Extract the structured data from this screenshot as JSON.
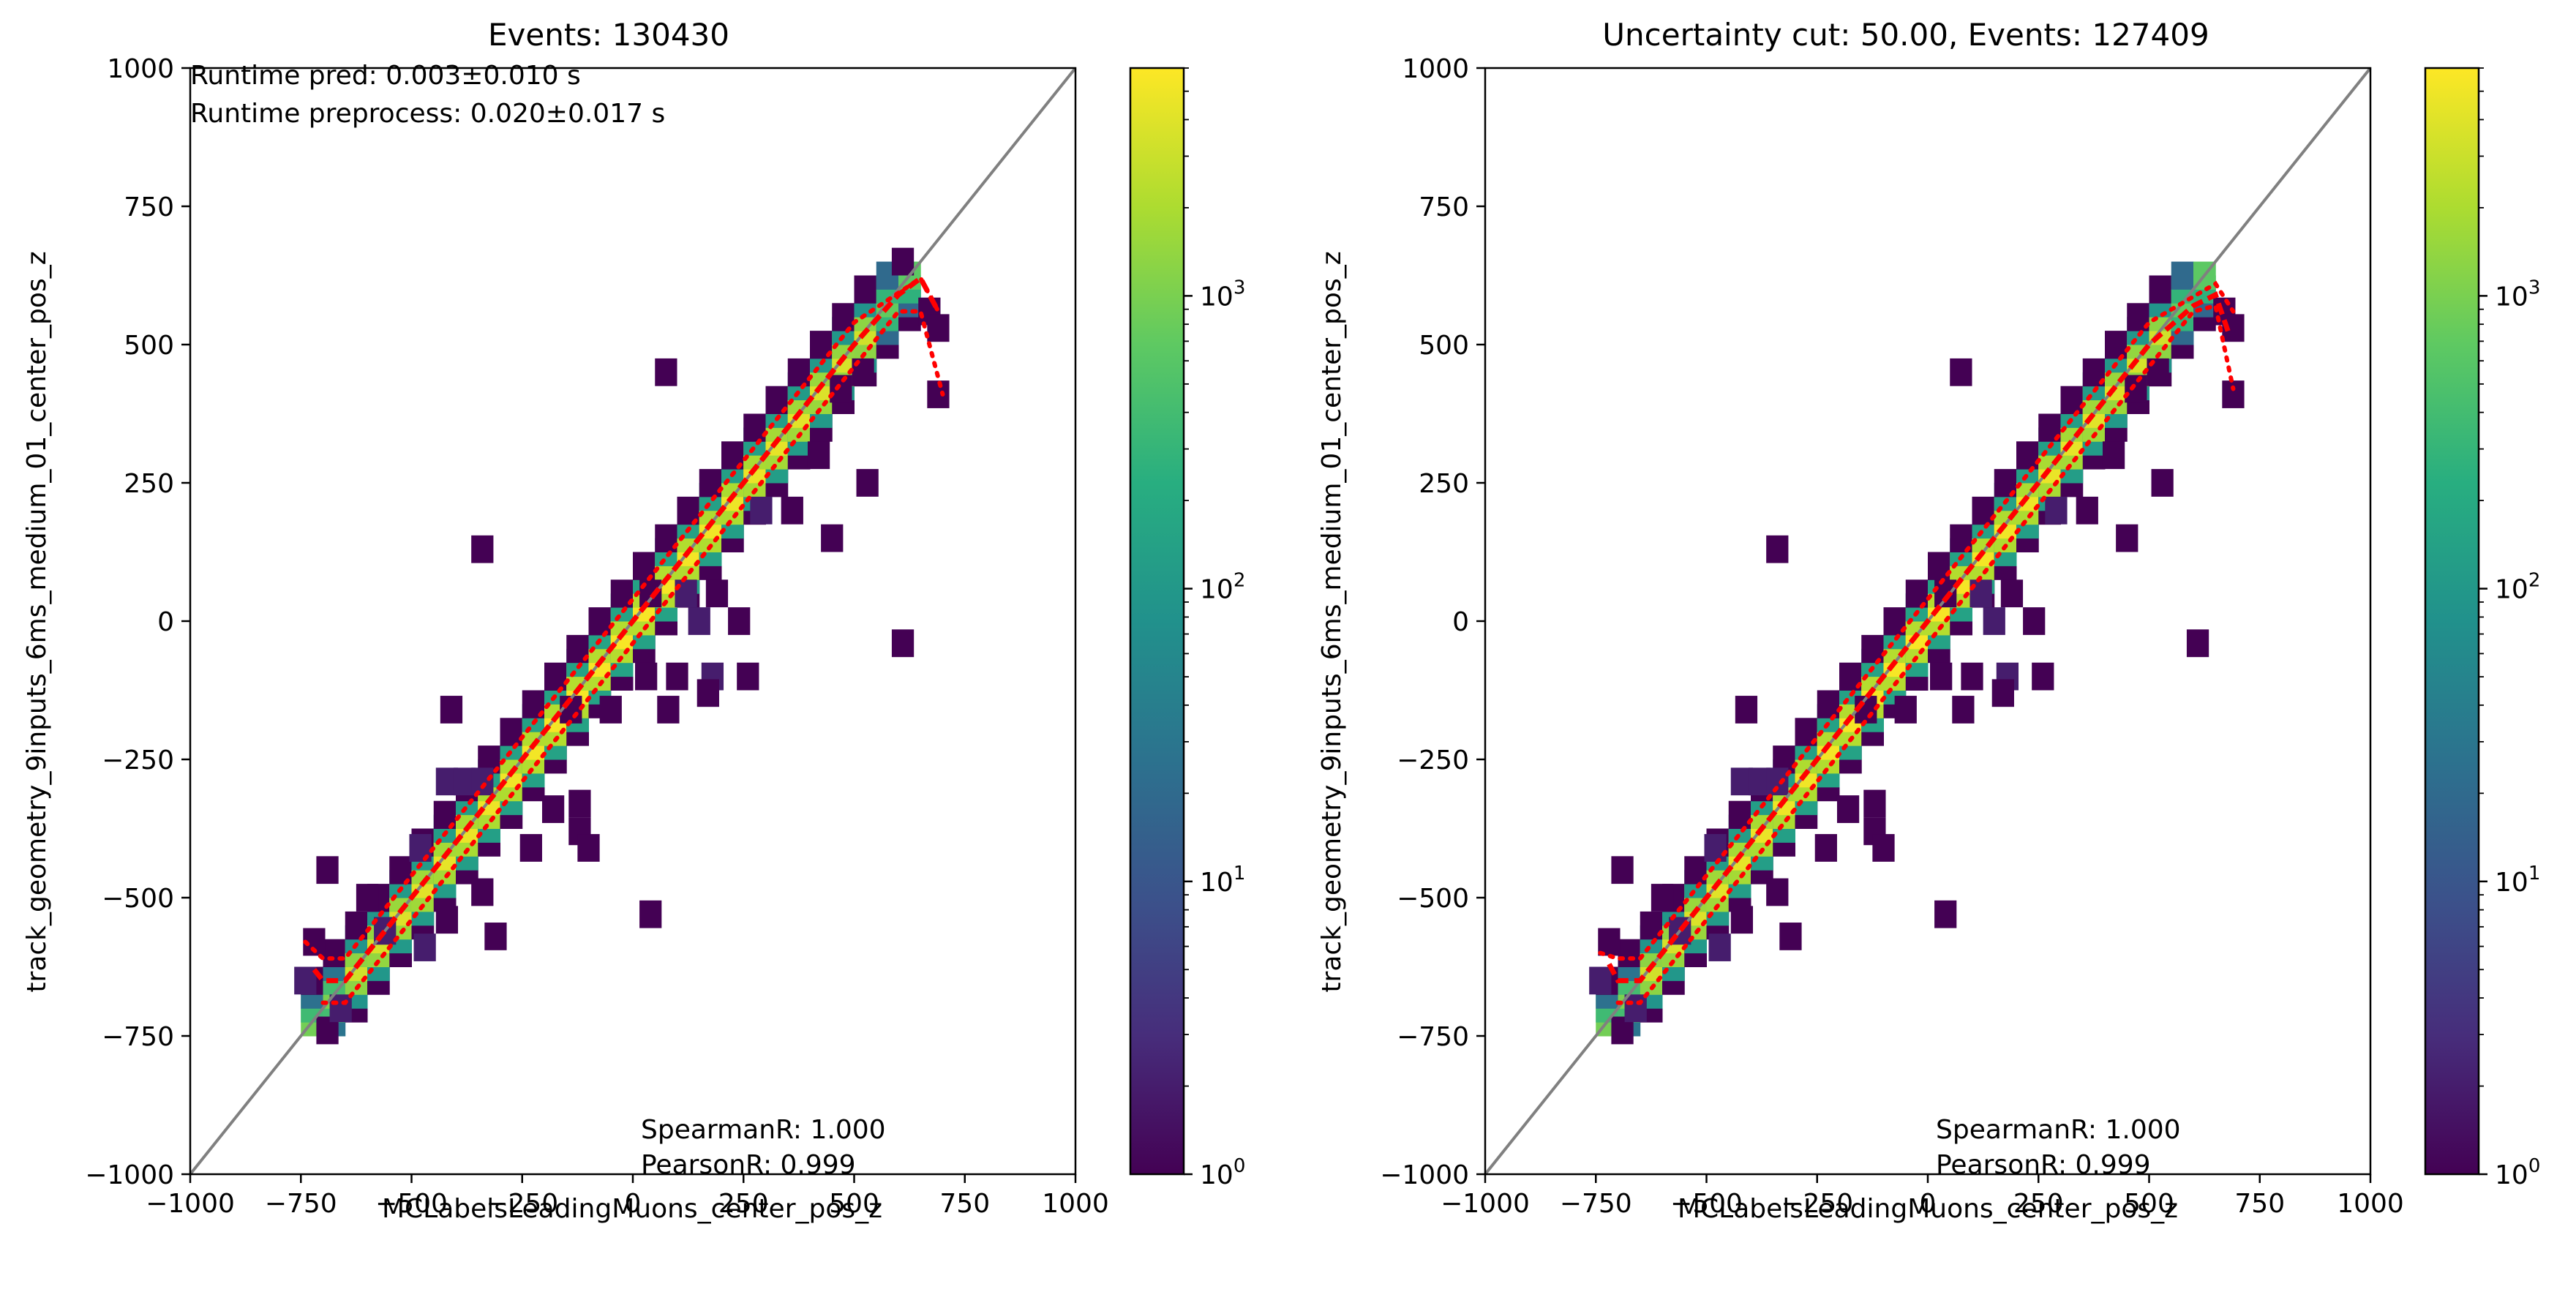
{
  "figure": {
    "background": "#ffffff"
  },
  "chart_data": [
    {
      "type": "heatmap",
      "title": "Events: 130430",
      "xlabel": "MCLabelsLeadingMuons_center_pos_z",
      "ylabel": "track_geometry_9inputs_6ms_medium_01_center_pos_z",
      "xlim": [
        -1000,
        1000
      ],
      "ylim": [
        -1000,
        1000
      ],
      "xticks": [
        "−1000",
        "−750",
        "−500",
        "−250",
        "0",
        "250",
        "500",
        "750",
        "1000"
      ],
      "yticks": [
        "−1000",
        "−750",
        "−500",
        "−250",
        "0",
        "250",
        "500",
        "750",
        "1000"
      ],
      "colorscale": "log",
      "colormap": "viridis",
      "colorbar_range": [
        1,
        6000
      ],
      "colorbar_ticks": [
        {
          "base": "10",
          "exp": "0",
          "value": 1
        },
        {
          "base": "10",
          "exp": "1",
          "value": 10
        },
        {
          "base": "10",
          "exp": "2",
          "value": 100
        },
        {
          "base": "10",
          "exp": "3",
          "value": 1000
        }
      ],
      "annotations_top": [
        "Runtime pred: 0.003±0.010 s",
        "Runtime preprocess: 0.020±0.017 s"
      ],
      "annotations_bottom": [
        "SpearmanR: 1.000",
        "PearsonR: 0.999"
      ],
      "bin_width": 50,
      "diagonal": {
        "x": [
          -1000,
          1000
        ],
        "y": [
          -1000,
          1000
        ],
        "color": "#808080"
      },
      "outliers": [
        {
          "x": 75,
          "y": 450,
          "count": 1
        },
        {
          "x": 610,
          "y": 650,
          "count": 1
        },
        {
          "x": 690,
          "y": 410,
          "count": 1
        },
        {
          "x": 520,
          "y": 450,
          "count": 1
        },
        {
          "x": 420,
          "y": 300,
          "count": 1
        },
        {
          "x": 360,
          "y": 200,
          "count": 1
        },
        {
          "x": 530,
          "y": 250,
          "count": 1
        },
        {
          "x": 450,
          "y": 150,
          "count": 1
        },
        {
          "x": 290,
          "y": 200,
          "count": 2
        },
        {
          "x": 610,
          "y": -40,
          "count": 1
        },
        {
          "x": -340,
          "y": 130,
          "count": 1
        },
        {
          "x": -410,
          "y": -160,
          "count": 1
        },
        {
          "x": 40,
          "y": 50,
          "count": 1
        },
        {
          "x": 120,
          "y": 50,
          "count": 2
        },
        {
          "x": 190,
          "y": 50,
          "count": 1
        },
        {
          "x": 150,
          "y": 0,
          "count": 2
        },
        {
          "x": 240,
          "y": 0,
          "count": 1
        },
        {
          "x": 30,
          "y": -100,
          "count": 1
        },
        {
          "x": 100,
          "y": -100,
          "count": 1
        },
        {
          "x": 180,
          "y": -100,
          "count": 2
        },
        {
          "x": 260,
          "y": -100,
          "count": 1
        },
        {
          "x": -50,
          "y": -160,
          "count": 1
        },
        {
          "x": 80,
          "y": -160,
          "count": 1
        },
        {
          "x": 170,
          "y": -130,
          "count": 1
        },
        {
          "x": -140,
          "y": -160,
          "count": 1
        },
        {
          "x": -420,
          "y": -290,
          "count": 2
        },
        {
          "x": -380,
          "y": -290,
          "count": 2
        },
        {
          "x": -340,
          "y": -290,
          "count": 2
        },
        {
          "x": -120,
          "y": -330,
          "count": 1
        },
        {
          "x": -120,
          "y": -380,
          "count": 1
        },
        {
          "x": -230,
          "y": -410,
          "count": 1
        },
        {
          "x": -100,
          "y": -410,
          "count": 1
        },
        {
          "x": -480,
          "y": -410,
          "count": 2
        },
        {
          "x": -180,
          "y": -340,
          "count": 1
        },
        {
          "x": -340,
          "y": -490,
          "count": 1
        },
        {
          "x": -420,
          "y": -540,
          "count": 1
        },
        {
          "x": 40,
          "y": -530,
          "count": 1
        },
        {
          "x": -690,
          "y": -450,
          "count": 1
        },
        {
          "x": -720,
          "y": -580,
          "count": 1
        },
        {
          "x": -740,
          "y": -650,
          "count": 2
        },
        {
          "x": -690,
          "y": -740,
          "count": 1
        },
        {
          "x": -310,
          "y": -570,
          "count": 1
        },
        {
          "x": -600,
          "y": -500,
          "count": 1
        },
        {
          "x": -560,
          "y": -560,
          "count": 2
        },
        {
          "x": -470,
          "y": -590,
          "count": 2
        },
        {
          "x": -660,
          "y": -700,
          "count": 2
        },
        {
          "x": 670,
          "y": 560,
          "count": 1
        },
        {
          "x": 690,
          "y": 530,
          "count": 1
        },
        {
          "x": 470,
          "y": 420,
          "count": 1
        }
      ],
      "red_median": {
        "x": [
          -720,
          -700,
          -650,
          -500,
          -250,
          0,
          250,
          500,
          600,
          650,
          690
        ],
        "y": [
          -630,
          -650,
          -650,
          -500,
          -250,
          0,
          250,
          500,
          590,
          620,
          560
        ]
      },
      "red_upper": {
        "x": [
          -740,
          -700,
          -650,
          -500,
          -250,
          0,
          250,
          500,
          650,
          690
        ],
        "y": [
          -580,
          -610,
          -610,
          -460,
          -210,
          40,
          290,
          540,
          620,
          560
        ]
      },
      "red_lower": {
        "x": [
          -700,
          -650,
          -500,
          -250,
          0,
          250,
          500,
          600,
          650,
          700
        ],
        "y": [
          -690,
          -690,
          -540,
          -290,
          -40,
          210,
          460,
          560,
          560,
          410
        ]
      }
    },
    {
      "type": "heatmap",
      "title": "Uncertainty cut: 50.00, Events: 127409",
      "xlabel": "MCLabelsLeadingMuons_center_pos_z",
      "ylabel": "track_geometry_9inputs_6ms_medium_01_center_pos_z",
      "xlim": [
        -1000,
        1000
      ],
      "ylim": [
        -1000,
        1000
      ],
      "xticks": [
        "−1000",
        "−750",
        "−500",
        "−250",
        "0",
        "250",
        "500",
        "750",
        "1000"
      ],
      "yticks": [
        "−1000",
        "−750",
        "−500",
        "−250",
        "0",
        "250",
        "500",
        "750",
        "1000"
      ],
      "colorscale": "log",
      "colormap": "viridis",
      "colorbar_range": [
        1,
        6000
      ],
      "colorbar_ticks": [
        {
          "base": "10",
          "exp": "0",
          "value": 1
        },
        {
          "base": "10",
          "exp": "1",
          "value": 10
        },
        {
          "base": "10",
          "exp": "2",
          "value": 100
        },
        {
          "base": "10",
          "exp": "3",
          "value": 1000
        }
      ],
      "annotations_top": [],
      "annotations_bottom": [
        "SpearmanR: 1.000",
        "PearsonR: 0.999"
      ],
      "bin_width": 50,
      "diagonal": {
        "x": [
          -1000,
          1000
        ],
        "y": [
          -1000,
          1000
        ],
        "color": "#808080"
      },
      "outliers": [
        {
          "x": 75,
          "y": 450,
          "count": 1
        },
        {
          "x": 690,
          "y": 410,
          "count": 1
        },
        {
          "x": 520,
          "y": 450,
          "count": 1
        },
        {
          "x": 420,
          "y": 300,
          "count": 1
        },
        {
          "x": 360,
          "y": 200,
          "count": 1
        },
        {
          "x": 530,
          "y": 250,
          "count": 1
        },
        {
          "x": 450,
          "y": 150,
          "count": 1
        },
        {
          "x": 290,
          "y": 200,
          "count": 2
        },
        {
          "x": 610,
          "y": -40,
          "count": 1
        },
        {
          "x": -340,
          "y": 130,
          "count": 1
        },
        {
          "x": -410,
          "y": -160,
          "count": 1
        },
        {
          "x": 40,
          "y": 50,
          "count": 1
        },
        {
          "x": 120,
          "y": 50,
          "count": 2
        },
        {
          "x": 190,
          "y": 50,
          "count": 1
        },
        {
          "x": 150,
          "y": 0,
          "count": 2
        },
        {
          "x": 240,
          "y": 0,
          "count": 1
        },
        {
          "x": 30,
          "y": -100,
          "count": 1
        },
        {
          "x": 100,
          "y": -100,
          "count": 1
        },
        {
          "x": 180,
          "y": -100,
          "count": 2
        },
        {
          "x": 260,
          "y": -100,
          "count": 1
        },
        {
          "x": -50,
          "y": -160,
          "count": 1
        },
        {
          "x": 80,
          "y": -160,
          "count": 1
        },
        {
          "x": 170,
          "y": -130,
          "count": 1
        },
        {
          "x": -140,
          "y": -160,
          "count": 1
        },
        {
          "x": -420,
          "y": -290,
          "count": 2
        },
        {
          "x": -380,
          "y": -290,
          "count": 2
        },
        {
          "x": -340,
          "y": -290,
          "count": 2
        },
        {
          "x": -120,
          "y": -330,
          "count": 1
        },
        {
          "x": -120,
          "y": -380,
          "count": 1
        },
        {
          "x": -230,
          "y": -410,
          "count": 1
        },
        {
          "x": -100,
          "y": -410,
          "count": 1
        },
        {
          "x": -480,
          "y": -410,
          "count": 2
        },
        {
          "x": -180,
          "y": -340,
          "count": 1
        },
        {
          "x": -340,
          "y": -490,
          "count": 1
        },
        {
          "x": -420,
          "y": -540,
          "count": 1
        },
        {
          "x": 40,
          "y": -530,
          "count": 1
        },
        {
          "x": -690,
          "y": -450,
          "count": 1
        },
        {
          "x": -720,
          "y": -580,
          "count": 1
        },
        {
          "x": -740,
          "y": -650,
          "count": 2
        },
        {
          "x": -690,
          "y": -740,
          "count": 1
        },
        {
          "x": -310,
          "y": -570,
          "count": 1
        },
        {
          "x": -600,
          "y": -500,
          "count": 1
        },
        {
          "x": -560,
          "y": -560,
          "count": 2
        },
        {
          "x": -470,
          "y": -590,
          "count": 2
        },
        {
          "x": -660,
          "y": -700,
          "count": 2
        },
        {
          "x": 670,
          "y": 560,
          "count": 1
        },
        {
          "x": 690,
          "y": 530,
          "count": 1
        },
        {
          "x": 470,
          "y": 420,
          "count": 1
        }
      ],
      "red_median": {
        "x": [
          -720,
          -700,
          -650,
          -500,
          -250,
          0,
          250,
          500,
          600,
          650,
          680
        ],
        "y": [
          -620,
          -650,
          -650,
          -500,
          -250,
          0,
          250,
          500,
          570,
          590,
          520
        ]
      },
      "red_upper": {
        "x": [
          -740,
          -700,
          -650,
          -500,
          -250,
          0,
          250,
          500,
          650,
          690
        ],
        "y": [
          -600,
          -610,
          -610,
          -460,
          -210,
          40,
          290,
          540,
          610,
          560
        ]
      },
      "red_lower": {
        "x": [
          -700,
          -650,
          -500,
          -250,
          0,
          250,
          500,
          600,
          650,
          690
        ],
        "y": [
          -690,
          -690,
          -540,
          -290,
          -40,
          210,
          460,
          560,
          570,
          420
        ]
      }
    }
  ]
}
